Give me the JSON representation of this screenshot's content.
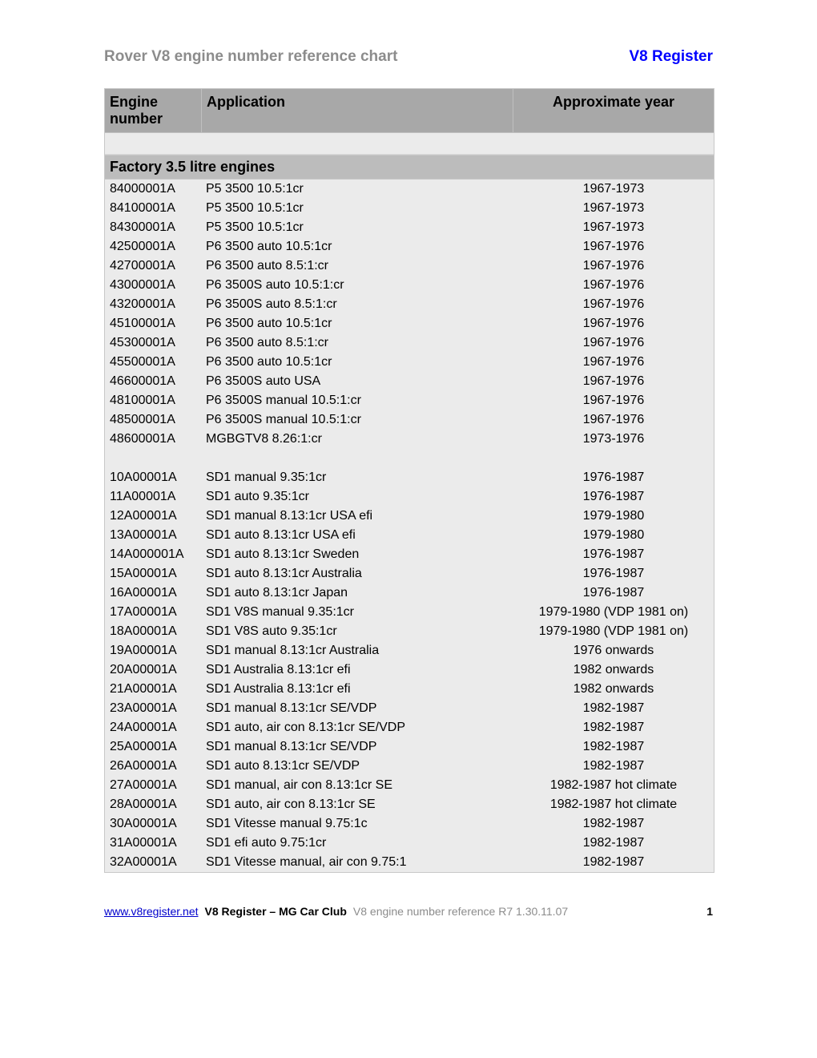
{
  "header": {
    "title_left": "Rover V8 engine number reference chart",
    "title_right": "V8 Register"
  },
  "table": {
    "columns": {
      "engine": "Engine number",
      "application": "Application",
      "year": "Approximate year"
    },
    "section_title": "Factory 3.5 litre engines",
    "group1": [
      {
        "eng": "84000001A",
        "app": "P5 3500 10.5:1cr",
        "year": "1967-1973"
      },
      {
        "eng": "84100001A",
        "app": "P5 3500 10.5:1cr",
        "year": "1967-1973"
      },
      {
        "eng": "84300001A",
        "app": "P5 3500 10.5:1cr",
        "year": "1967-1973"
      },
      {
        "eng": "42500001A",
        "app": "P6 3500 auto 10.5:1cr",
        "year": "1967-1976"
      },
      {
        "eng": "42700001A",
        "app": "P6 3500 auto 8.5:1:cr",
        "year": "1967-1976"
      },
      {
        "eng": "43000001A",
        "app": "P6 3500S auto 10.5:1:cr",
        "year": "1967-1976"
      },
      {
        "eng": "43200001A",
        "app": "P6 3500S auto 8.5:1:cr",
        "year": "1967-1976"
      },
      {
        "eng": "45100001A",
        "app": "P6 3500 auto 10.5:1cr",
        "year": "1967-1976"
      },
      {
        "eng": "45300001A",
        "app": "P6 3500 auto 8.5:1:cr",
        "year": "1967-1976"
      },
      {
        "eng": "45500001A",
        "app": "P6 3500 auto 10.5:1cr",
        "year": "1967-1976"
      },
      {
        "eng": "46600001A",
        "app": "P6 3500S auto USA",
        "year": "1967-1976"
      },
      {
        "eng": "48100001A",
        "app": "P6 3500S manual 10.5:1:cr",
        "year": "1967-1976"
      },
      {
        "eng": "48500001A",
        "app": "P6 3500S manual 10.5:1:cr",
        "year": "1967-1976"
      },
      {
        "eng": "48600001A",
        "app": "MGBGTV8 8.26:1:cr",
        "year": "1973-1976"
      }
    ],
    "group2": [
      {
        "eng": "10A00001A",
        "app": "SD1 manual 9.35:1cr",
        "year": "1976-1987"
      },
      {
        "eng": "11A00001A",
        "app": "SD1 auto 9.35:1cr",
        "year": "1976-1987"
      },
      {
        "eng": "12A00001A",
        "app": "SD1 manual 8.13:1cr USA efi",
        "year": "1979-1980"
      },
      {
        "eng": "13A00001A",
        "app": "SD1 auto 8.13:1cr USA efi",
        "year": "1979-1980"
      },
      {
        "eng": "14A000001A",
        "app": "SD1 auto 8.13:1cr Sweden",
        "year": "1976-1987"
      },
      {
        "eng": "15A00001A",
        "app": "SD1 auto 8.13:1cr Australia",
        "year": "1976-1987"
      },
      {
        "eng": "16A00001A",
        "app": "SD1 auto 8.13:1cr Japan",
        "year": "1976-1987"
      },
      {
        "eng": "17A00001A",
        "app": "SD1 V8S manual 9.35:1cr",
        "year": "1979-1980 (VDP 1981 on)"
      },
      {
        "eng": "18A00001A",
        "app": "SD1 V8S auto 9.35:1cr",
        "year": "1979-1980 (VDP 1981 on)"
      },
      {
        "eng": "19A00001A",
        "app": "SD1 manual 8.13:1cr Australia",
        "year": "1976 onwards"
      },
      {
        "eng": "20A00001A",
        "app": "SD1 Australia 8.13:1cr efi",
        "year": "1982 onwards"
      },
      {
        "eng": "21A00001A",
        "app": "SD1 Australia 8.13:1cr efi",
        "year": "1982 onwards"
      },
      {
        "eng": "23A00001A",
        "app": "SD1 manual 8.13:1cr SE/VDP",
        "year": "1982-1987"
      },
      {
        "eng": "24A00001A",
        "app": "SD1 auto, air con 8.13:1cr SE/VDP",
        "year": "1982-1987"
      },
      {
        "eng": "25A00001A",
        "app": "SD1 manual 8.13:1cr SE/VDP",
        "year": "1982-1987"
      },
      {
        "eng": "26A00001A",
        "app": "SD1 auto 8.13:1cr SE/VDP",
        "year": "1982-1987"
      },
      {
        "eng": "27A00001A",
        "app": "SD1 manual, air con 8.13:1cr SE",
        "year": "1982-1987 hot climate"
      },
      {
        "eng": "28A00001A",
        "app": "SD1 auto, air con 8.13:1cr SE",
        "year": "1982-1987 hot climate"
      },
      {
        "eng": "30A00001A",
        "app": "SD1 Vitesse manual 9.75:1c",
        "year": "1982-1987"
      },
      {
        "eng": "31A00001A",
        "app": "SD1 efi auto 9.75:1cr",
        "year": "1982-1987"
      },
      {
        "eng": "32A00001A",
        "app": "SD1 Vitesse manual, air con 9.75:1",
        "year": "1982-1987"
      }
    ]
  },
  "footer": {
    "url": "www.v8register.net",
    "org": "V8 Register – MG Car Club",
    "ref": "V8 engine number reference R7 1.30.11.07",
    "page": "1"
  }
}
